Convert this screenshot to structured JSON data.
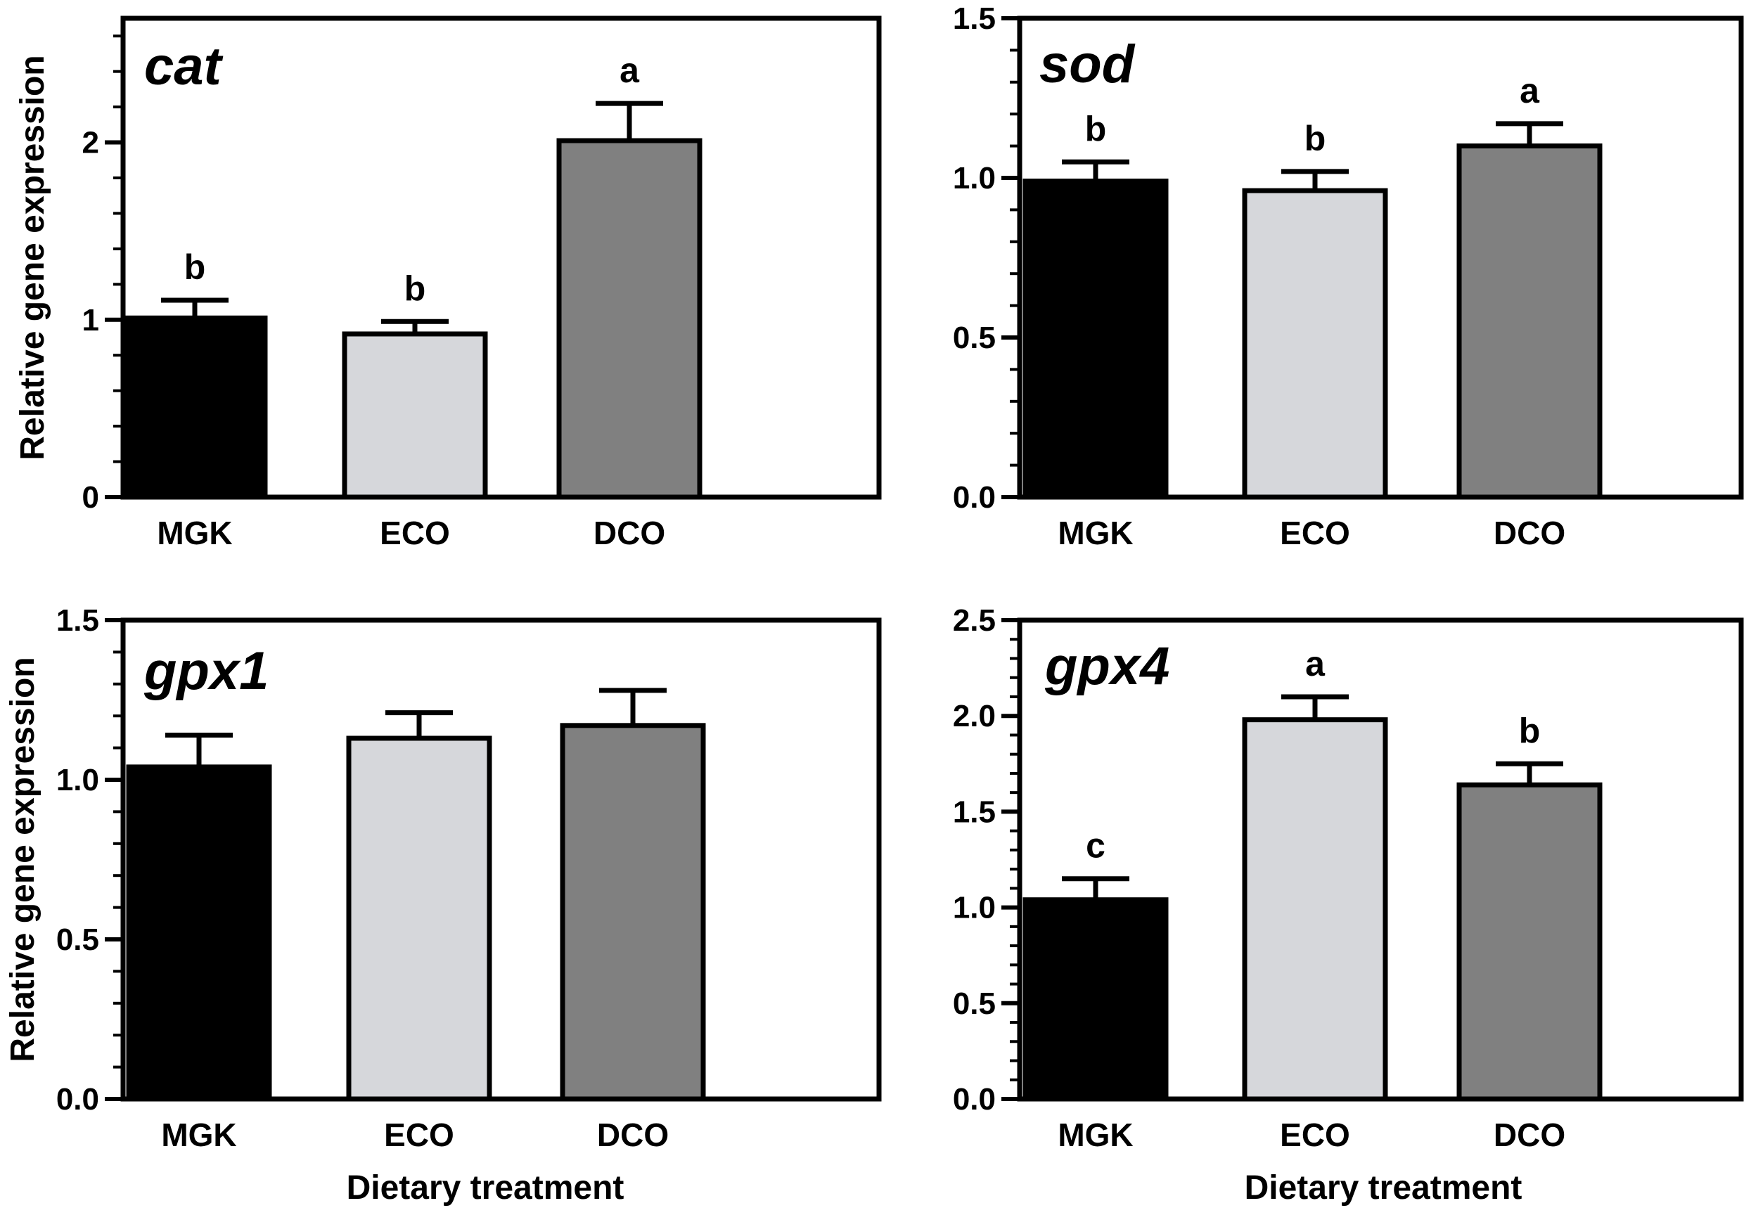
{
  "figure": {
    "y_axis_title": "Relative gene expression",
    "x_axis_title": "Dietary treatment"
  },
  "colors": {
    "MGK": "#000000",
    "ECO": "#d6d7db",
    "DCO": "#808080",
    "stroke": "#000000"
  },
  "chart_data": [
    {
      "type": "bar",
      "title": "cat",
      "categories": [
        "MGK",
        "ECO",
        "DCO"
      ],
      "values": [
        1.01,
        0.92,
        2.01
      ],
      "errors": [
        0.1,
        0.07,
        0.21
      ],
      "significance": [
        "b",
        "b",
        "a"
      ],
      "ylim": [
        0,
        2.7
      ],
      "yticks": [
        0,
        1,
        2
      ],
      "ytick_labels": [
        "0",
        "1",
        "2"
      ],
      "ylabel": "Relative gene expression",
      "xlabel": ""
    },
    {
      "type": "bar",
      "title": "sod",
      "categories": [
        "MGK",
        "ECO",
        "DCO"
      ],
      "values": [
        0.99,
        0.96,
        1.1
      ],
      "errors": [
        0.06,
        0.06,
        0.07
      ],
      "significance": [
        "b",
        "b",
        "a"
      ],
      "ylim": [
        0,
        1.5
      ],
      "yticks": [
        0,
        0.5,
        1,
        1.5
      ],
      "ytick_labels": [
        "0.0",
        "0.5",
        "1.0",
        "1.5"
      ],
      "ylabel": "",
      "xlabel": ""
    },
    {
      "type": "bar",
      "title": "gpx1",
      "categories": [
        "MGK",
        "ECO",
        "DCO"
      ],
      "values": [
        1.04,
        1.13,
        1.17
      ],
      "errors": [
        0.1,
        0.08,
        0.11
      ],
      "significance": [
        "",
        "",
        ""
      ],
      "ylim": [
        0,
        1.5
      ],
      "yticks": [
        0,
        0.5,
        1,
        1.5
      ],
      "ytick_labels": [
        "0.0",
        "0.5",
        "1.0",
        "1.5"
      ],
      "ylabel": "Relative gene expression",
      "xlabel": "Dietary treatment"
    },
    {
      "type": "bar",
      "title": "gpx4",
      "categories": [
        "MGK",
        "ECO",
        "DCO"
      ],
      "values": [
        1.04,
        1.98,
        1.64
      ],
      "errors": [
        0.11,
        0.12,
        0.11
      ],
      "significance": [
        "c",
        "a",
        "b"
      ],
      "ylim": [
        0,
        2.5
      ],
      "yticks": [
        0,
        0.5,
        1,
        1.5,
        2,
        2.5
      ],
      "ytick_labels": [
        "0.0",
        "0.5",
        "1.0",
        "1.5",
        "2.0",
        "2.5"
      ],
      "ylabel": "",
      "xlabel": "Dietary treatment"
    }
  ]
}
